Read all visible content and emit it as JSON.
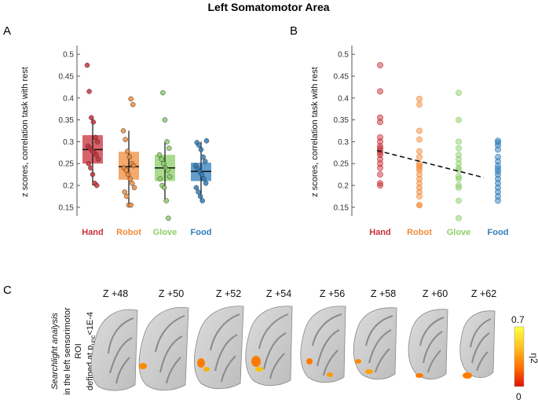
{
  "figure": {
    "title": "Left Somatomotor Area",
    "panels": {
      "a": "A",
      "b": "B",
      "c": "C"
    }
  },
  "colors": {
    "Hand": "#c8323a",
    "Robot": "#f08c3c",
    "Glove": "#8ccf6a",
    "Food": "#2f7dbb"
  },
  "chart_data": [
    {
      "type": "box",
      "panel": "A",
      "title": "",
      "xlabel": "",
      "ylabel": "z scores, correlation task with rest",
      "ylim": [
        0.13,
        0.52
      ],
      "yticks": [
        0.15,
        0.2,
        0.25,
        0.3,
        0.35,
        0.4,
        0.45,
        0.5
      ],
      "categories": [
        "Hand",
        "Robot",
        "Glove",
        "Food"
      ],
      "series": [
        {
          "name": "Hand",
          "q1": 0.25,
          "median": 0.282,
          "q3": 0.315,
          "whisker_low": 0.2,
          "whisker_high": 0.355,
          "points": [
            0.475,
            0.415,
            0.355,
            0.345,
            0.31,
            0.3,
            0.29,
            0.285,
            0.28,
            0.275,
            0.27,
            0.26,
            0.25,
            0.24,
            0.225,
            0.205,
            0.2
          ]
        },
        {
          "name": "Robot",
          "q1": 0.213,
          "median": 0.243,
          "q3": 0.277,
          "whisker_low": 0.155,
          "whisker_high": 0.325,
          "points": [
            0.398,
            0.385,
            0.325,
            0.305,
            0.278,
            0.265,
            0.25,
            0.245,
            0.24,
            0.235,
            0.225,
            0.215,
            0.205,
            0.195,
            0.185,
            0.175,
            0.155,
            0.155
          ]
        },
        {
          "name": "Glove",
          "q1": 0.21,
          "median": 0.24,
          "q3": 0.27,
          "whisker_low": 0.165,
          "whisker_high": 0.3,
          "points": [
            0.412,
            0.35,
            0.3,
            0.285,
            0.27,
            0.26,
            0.25,
            0.24,
            0.235,
            0.22,
            0.215,
            0.2,
            0.195,
            0.165,
            0.125
          ]
        },
        {
          "name": "Food",
          "q1": 0.21,
          "median": 0.232,
          "q3": 0.252,
          "whisker_low": 0.165,
          "whisker_high": 0.3,
          "points": [
            0.302,
            0.298,
            0.292,
            0.282,
            0.265,
            0.255,
            0.245,
            0.238,
            0.232,
            0.225,
            0.215,
            0.205,
            0.195,
            0.185,
            0.175,
            0.165
          ]
        }
      ]
    },
    {
      "type": "scatter",
      "panel": "B",
      "title": "",
      "xlabel": "",
      "ylabel": "z scores, correlation task with rest",
      "ylim": [
        0.13,
        0.52
      ],
      "yticks": [
        0.15,
        0.2,
        0.25,
        0.3,
        0.35,
        0.4,
        0.45,
        0.5
      ],
      "categories": [
        "Hand",
        "Robot",
        "Glove",
        "Food"
      ],
      "trendline": {
        "style": "dashed",
        "start": 0.28,
        "end": 0.218
      },
      "series": [
        {
          "name": "Hand",
          "points": [
            0.475,
            0.415,
            0.355,
            0.345,
            0.31,
            0.3,
            0.29,
            0.285,
            0.28,
            0.275,
            0.27,
            0.26,
            0.25,
            0.24,
            0.225,
            0.205,
            0.2
          ]
        },
        {
          "name": "Robot",
          "points": [
            0.398,
            0.385,
            0.325,
            0.305,
            0.278,
            0.265,
            0.25,
            0.245,
            0.24,
            0.235,
            0.225,
            0.215,
            0.205,
            0.195,
            0.185,
            0.175,
            0.155,
            0.155
          ]
        },
        {
          "name": "Glove",
          "points": [
            0.412,
            0.35,
            0.3,
            0.285,
            0.27,
            0.26,
            0.25,
            0.24,
            0.235,
            0.22,
            0.215,
            0.2,
            0.195,
            0.165,
            0.125
          ]
        },
        {
          "name": "Food",
          "points": [
            0.302,
            0.298,
            0.292,
            0.282,
            0.265,
            0.255,
            0.245,
            0.238,
            0.232,
            0.225,
            0.215,
            0.205,
            0.195,
            0.185,
            0.175,
            0.165
          ]
        }
      ]
    }
  ],
  "searchlight": {
    "title_line1": "Searchlight analysis",
    "title_line2": "in the left sensorimotor",
    "title_line3": "ROI",
    "title_line4_prefix": "defined at p",
    "title_line4_sub": "unc",
    "title_line4_suffix": "<1E-4",
    "slices": [
      "Z +48",
      "Z +50",
      "Z +52",
      "Z +54",
      "Z +56",
      "Z +58",
      "Z +60",
      "Z +62"
    ],
    "colorbar": {
      "max": "0.7",
      "min": "0",
      "label": "η2"
    }
  }
}
